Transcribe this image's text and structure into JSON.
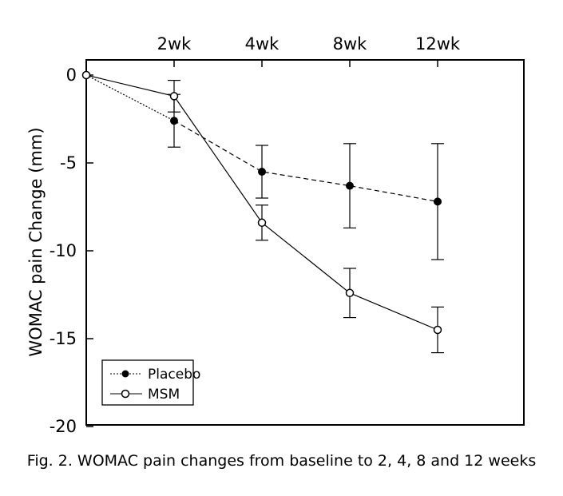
{
  "chart_data": {
    "type": "line",
    "title": "",
    "xlabel": "",
    "ylabel": "WOMAC pain Change (mm)",
    "categories": [
      "",
      "2wk",
      "4wk",
      "8wk",
      "12wk"
    ],
    "x": [
      0,
      1,
      2,
      3,
      4
    ],
    "ylim": [
      -20,
      0
    ],
    "yticks": [
      0,
      -5,
      -10,
      -15,
      -20
    ],
    "ytick_labels": [
      "0",
      "-5",
      "-10",
      "-15",
      "-20"
    ],
    "grid": false,
    "legend_position": "bottom-left",
    "series": [
      {
        "name": "Placebo",
        "marker": "filled-circle",
        "line": "dashed",
        "values": [
          0,
          -2.6,
          -5.5,
          -6.3,
          -7.2
        ],
        "error": [
          0,
          1.5,
          1.5,
          2.4,
          3.3
        ]
      },
      {
        "name": "MSM",
        "marker": "open-circle",
        "line": "solid",
        "values": [
          0,
          -1.2,
          -8.4,
          -12.4,
          -14.5
        ],
        "error": [
          0,
          0.9,
          1.0,
          1.4,
          1.3
        ]
      }
    ]
  },
  "caption": "Fig. 2. WOMAC pain changes from baseline to 2, 4, 8 and 12 weeks"
}
